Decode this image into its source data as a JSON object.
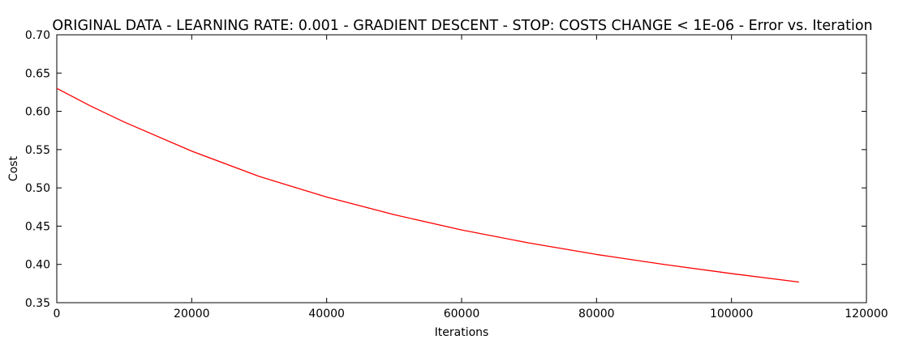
{
  "chart_data": {
    "type": "line",
    "title": "ORIGINAL DATA - LEARNING RATE: 0.001 - GRADIENT DESCENT - STOP: COSTS CHANGE < 1E-06 - Error vs. Iteration",
    "xlabel": "Iterations",
    "ylabel": "Cost",
    "xlim": [
      0,
      120000
    ],
    "ylim": [
      0.35,
      0.7
    ],
    "xticks": [
      0,
      20000,
      40000,
      60000,
      80000,
      100000,
      120000
    ],
    "yticks": [
      0.35,
      0.4,
      0.45,
      0.5,
      0.55,
      0.6,
      0.65,
      0.7
    ],
    "ytick_labels": [
      "0.35",
      "0.40",
      "0.45",
      "0.50",
      "0.55",
      "0.60",
      "0.65",
      "0.70"
    ],
    "grid": false,
    "series": [
      {
        "color": "#ff0000",
        "x": [
          0,
          5000,
          10000,
          20000,
          30000,
          40000,
          50000,
          60000,
          70000,
          80000,
          90000,
          100000,
          110000
        ],
        "y": [
          0.63,
          0.607,
          0.586,
          0.548,
          0.515,
          0.488,
          0.465,
          0.445,
          0.428,
          0.413,
          0.4,
          0.388,
          0.377
        ]
      }
    ]
  }
}
